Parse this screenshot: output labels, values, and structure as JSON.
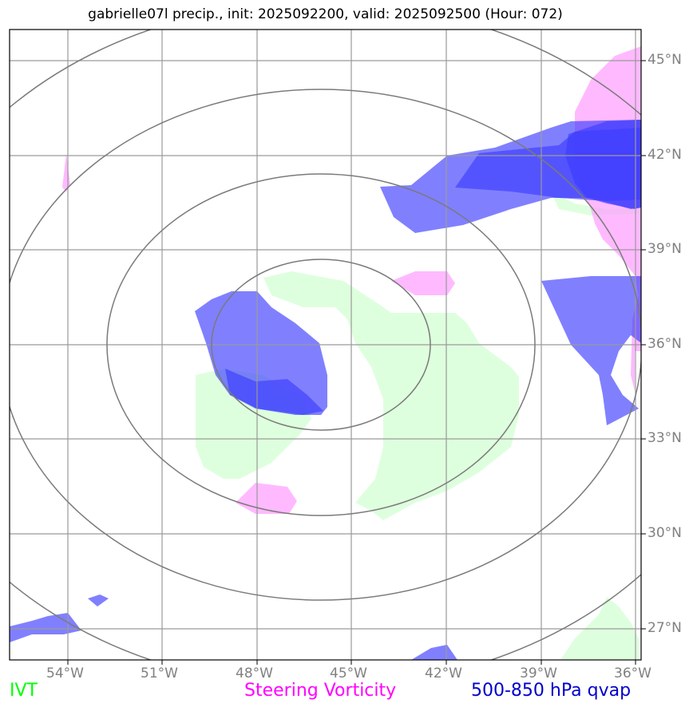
{
  "title": "gabrielle07l precip., init: 2025092200, valid: 2025092500 (Hour: 072)",
  "map": {
    "lon_range": [
      -55.8,
      -35.8
    ],
    "lat_range": [
      26.0,
      46.0
    ],
    "lat_labels": [
      "45°N",
      "42°N",
      "39°N",
      "36°N",
      "33°N",
      "30°N",
      "27°N"
    ],
    "lon_labels": [
      "54°W",
      "51°W",
      "48°W",
      "45°W",
      "42°W",
      "39°W",
      "36°W"
    ],
    "range_rings_center": {
      "lon": -45.8,
      "lat": 35.95
    }
  },
  "legend": {
    "ivt": {
      "label": "IVT",
      "color": "#00ff00"
    },
    "vort": {
      "label": "Steering Vorticity",
      "color": "#ff00ff"
    },
    "qvap": {
      "label": "500-850 hPa qvap",
      "color": "#0000cc"
    }
  },
  "colors": {
    "ivt_fill": "#c8ffc8",
    "vort_fill": "#ff9cff",
    "qvap_fill": "#3c3cff",
    "grid": "#999999",
    "rings": "#7a7a7a"
  }
}
